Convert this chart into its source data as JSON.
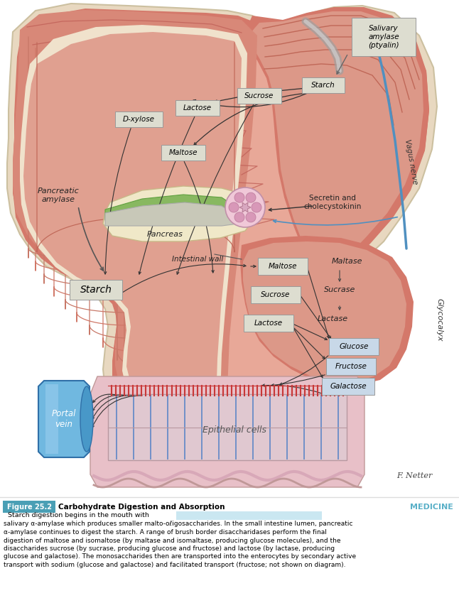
{
  "title": "Figure 25.2",
  "title_bold": "Carbohydrate Digestion and Absorption",
  "caption_rest": "  Starch digestion begins in the mouth with salivary α-amylase which produces smaller malto-ołʅosaccharides. In the small intestine lumen, pancreatic α-amylase continues to digest the starch. A range of brush border disaccharidases perform the final digestion of maltose and isomaltose (by maltase and isomaltase, producing glucose molecules), and the disaccharides sucrose (by sucrase, producing glucose and fructose) and lactose (by lactase, producing glucose and galactose). The monosaccharides then are transported into the enterocytes by secondary active transport with sodium (glucose and galactose) and facilitated transport (fructose; not shown on diagram).",
  "bg_white": "#FFFFFF",
  "skin_outer": "#d4786a",
  "skin_inner": "#e8a898",
  "skin_mid": "#cc7060",
  "fold_color": "#c06858",
  "cream_bg": "#f0e8d0",
  "pancreas_color": "#e8d898",
  "duct_color": "#88b860",
  "islet_bg": "#f0c8d8",
  "islet_cell": "#d898b8",
  "label_bg": "#ddddd0",
  "enzyme_bg": "#ccccba",
  "product_bg": "#c8d8e8",
  "portal_color1": "#70b8e0",
  "portal_color2": "#4898c8",
  "epithelial_bg": "#e8c0c8",
  "epithelial_lines": "#8898c8",
  "microvilli_color": "#c83838",
  "figure_label_bg": "#4a9fb5",
  "figure_label_text": "#FFFFFF",
  "vagus_color": "#5090c0",
  "secretin_arrow_color": "#333333",
  "caption_highlight": "#a8d8e8"
}
